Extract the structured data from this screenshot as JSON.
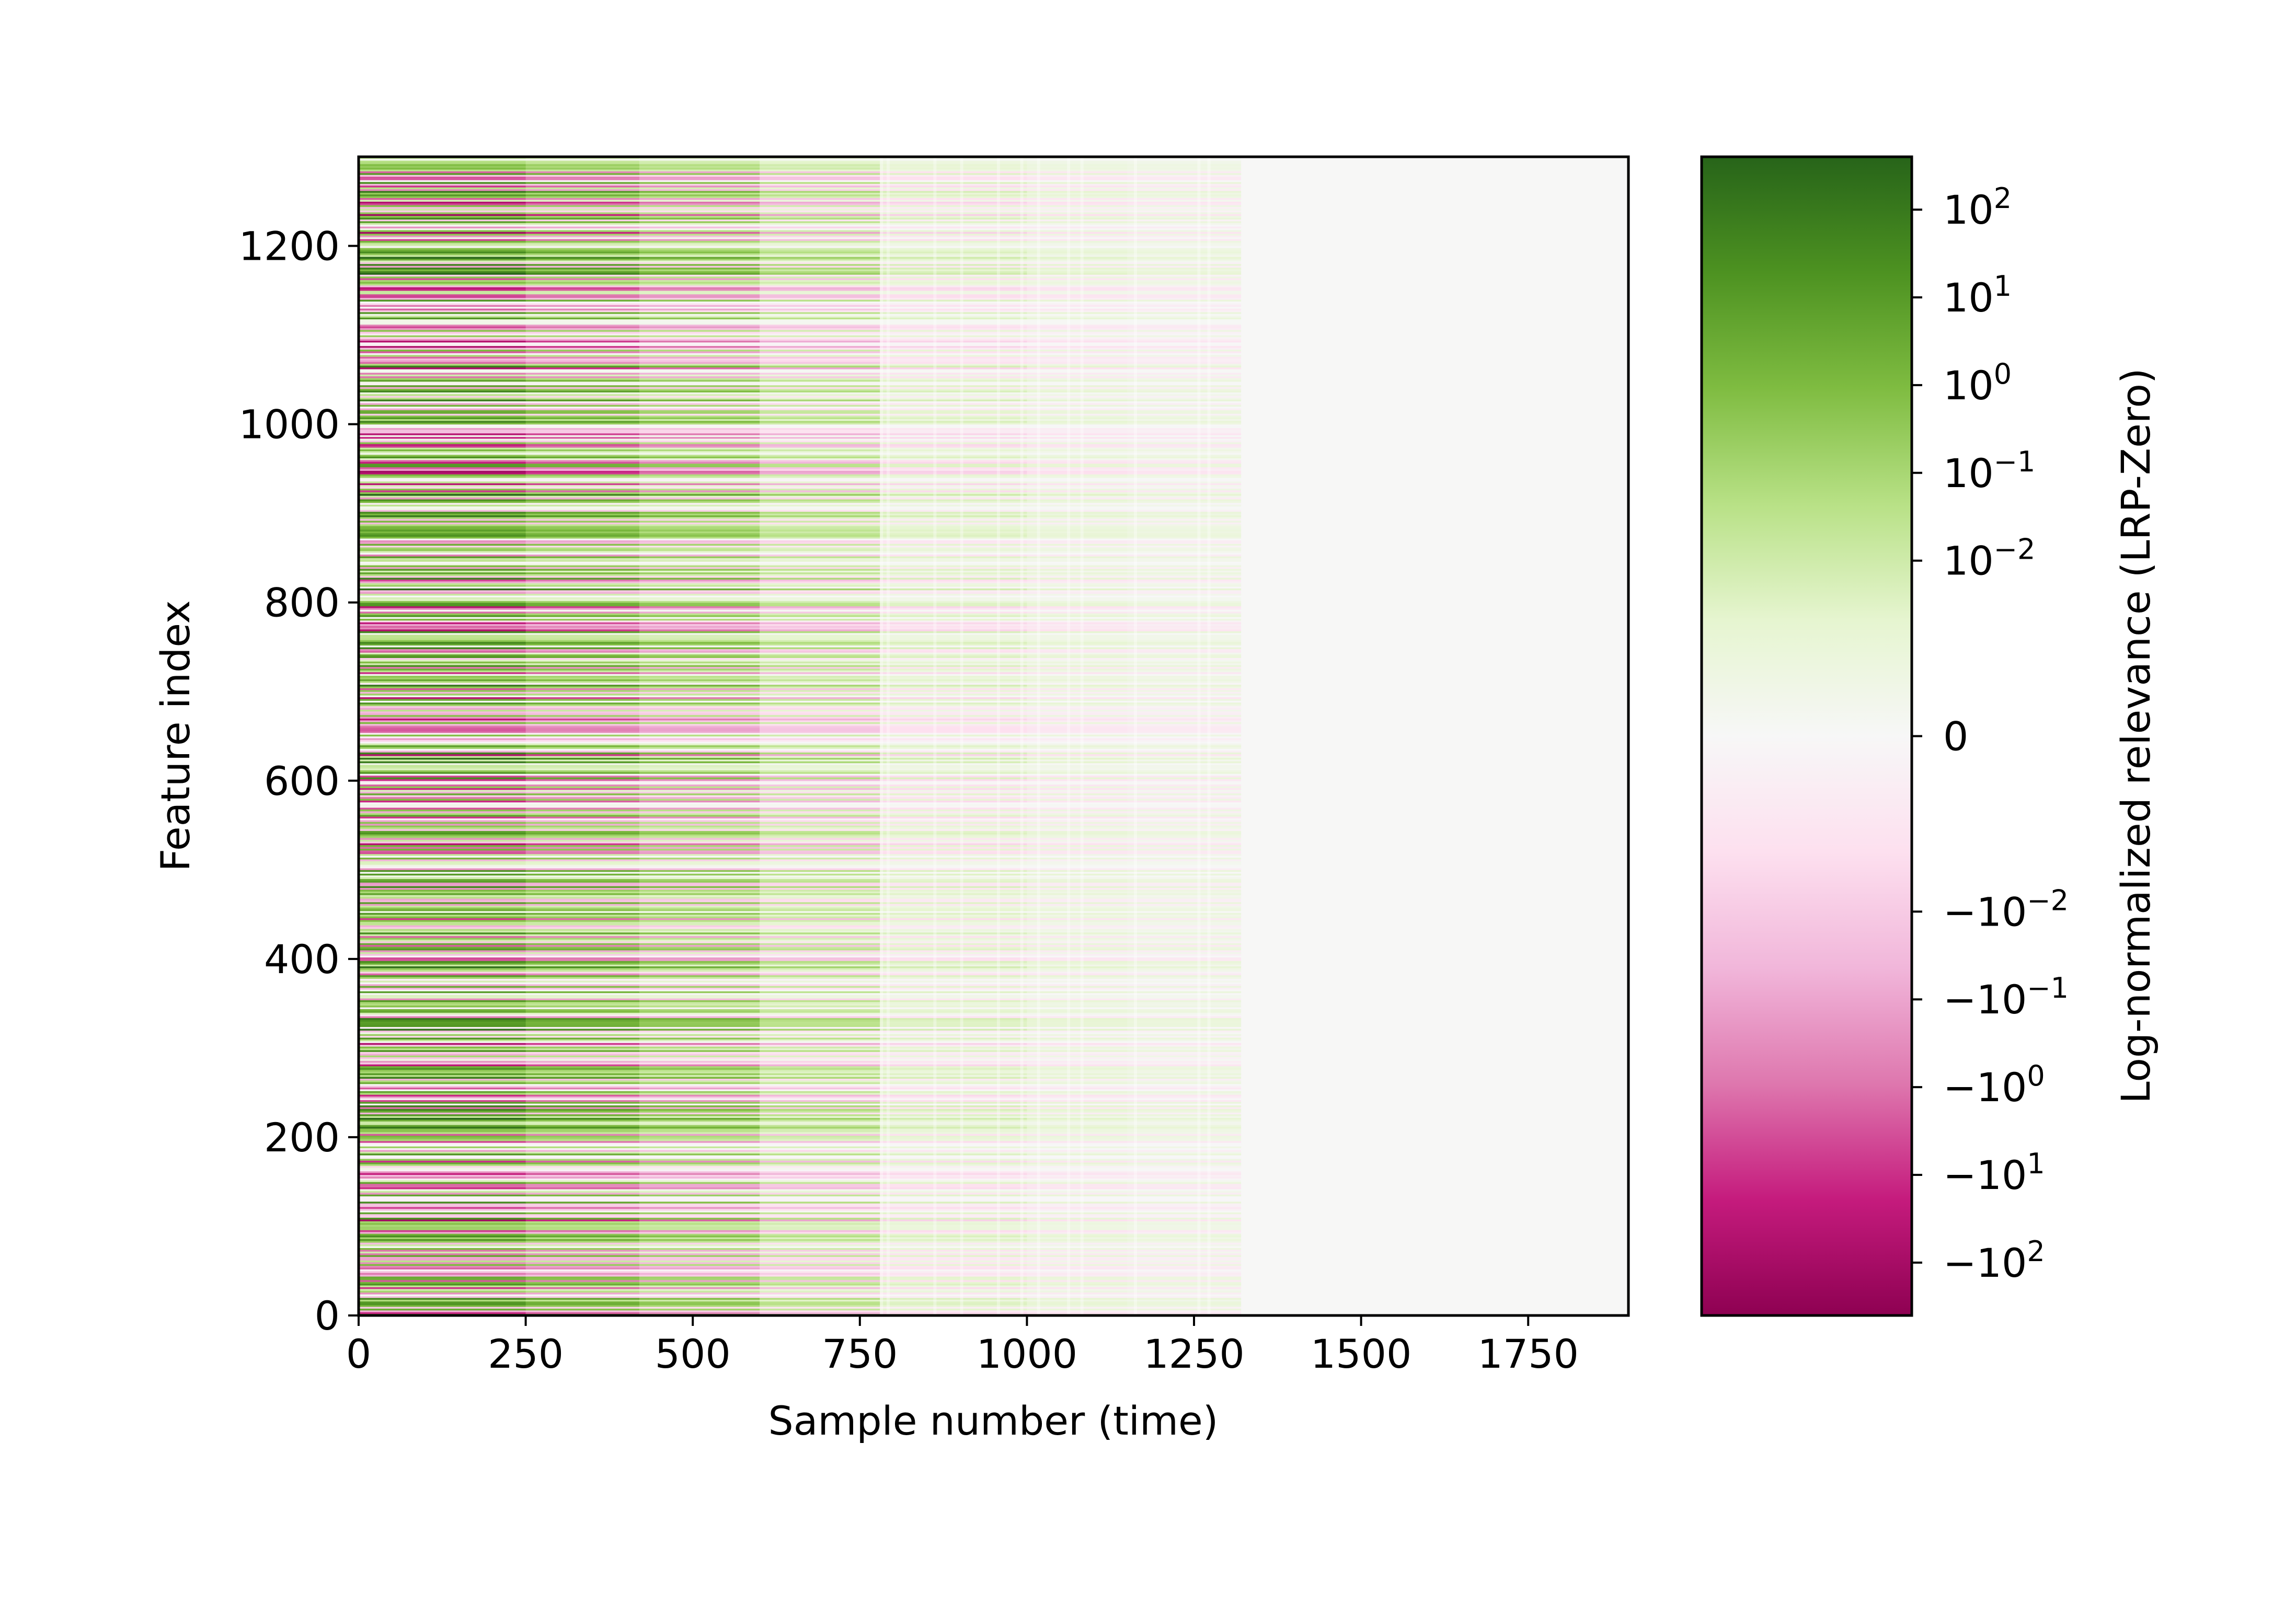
{
  "chart_data": {
    "type": "heatmap",
    "xlabel": "Sample number (time)",
    "ylabel": "Feature index",
    "xlim": [
      0,
      1900
    ],
    "ylim": [
      0,
      1300
    ],
    "x_ticks": [
      0,
      250,
      500,
      750,
      1000,
      1250,
      1500,
      1750
    ],
    "x_tick_labels": [
      "0",
      "250",
      "500",
      "750",
      "1000",
      "1250",
      "1500",
      "1750"
    ],
    "y_ticks": [
      0,
      200,
      400,
      600,
      800,
      1000,
      1200
    ],
    "y_tick_labels": [
      "0",
      "200",
      "400",
      "600",
      "800",
      "1000",
      "1200"
    ],
    "data_extent_x": 1320,
    "colorbar": {
      "label": "Log-normalized relevance (LRP-Zero)",
      "colormap": "PiYG",
      "scale": "symlog",
      "range": [
        -400,
        400
      ],
      "ticks": [
        {
          "value": 100,
          "base": "10",
          "exp": "2",
          "neg": false
        },
        {
          "value": 10,
          "base": "10",
          "exp": "1",
          "neg": false
        },
        {
          "value": 1,
          "base": "10",
          "exp": "0",
          "neg": false
        },
        {
          "value": 0.1,
          "base": "10",
          "exp": "−1",
          "neg": false
        },
        {
          "value": 0.01,
          "base": "10",
          "exp": "−2",
          "neg": false
        },
        {
          "value": 0,
          "base": "0",
          "exp": "",
          "neg": false
        },
        {
          "value": -0.01,
          "base": "−10",
          "exp": "−2",
          "neg": true
        },
        {
          "value": -0.1,
          "base": "−10",
          "exp": "−1",
          "neg": true
        },
        {
          "value": -1,
          "base": "−10",
          "exp": "0",
          "neg": true
        },
        {
          "value": -10,
          "base": "−10",
          "exp": "1",
          "neg": true
        },
        {
          "value": -100,
          "base": "−10",
          "exp": "2",
          "neg": true
        }
      ],
      "colors": [
        "#8e0152",
        "#c51b7d",
        "#de77ae",
        "#f1b6da",
        "#fde0ef",
        "#f7f7f7",
        "#e6f5d0",
        "#b8e186",
        "#7fbc41",
        "#4d9221",
        "#276419"
      ]
    },
    "background_color": "#f7f7f6"
  }
}
